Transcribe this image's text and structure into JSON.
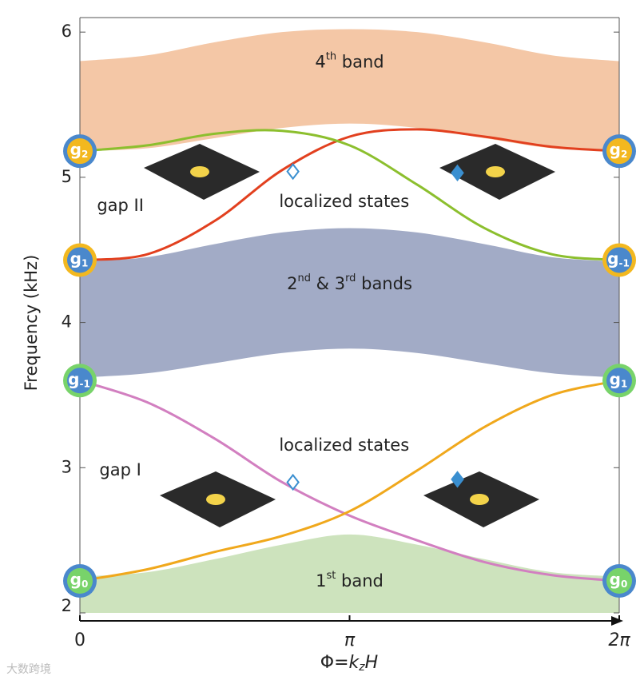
{
  "chart_data": {
    "type": "band",
    "y_label": "Frequency (kHz)",
    "x_label": [
      "Φ=",
      "k",
      "z",
      "H"
    ],
    "xlim": [
      0,
      2
    ],
    "xticks": [
      0,
      {
        "value": 1,
        "label": "π"
      },
      {
        "value": 2,
        "label": "2π"
      }
    ],
    "ylim": [
      2,
      6.1
    ],
    "yticks": [
      2,
      3,
      4,
      5,
      6
    ],
    "x": [
      0,
      0.25,
      0.5,
      0.75,
      1,
      1.25,
      1.5,
      1.75,
      2
    ],
    "bands": [
      {
        "label": [
          "4",
          "th",
          " band"
        ],
        "color": "#f4c7a6",
        "upper": [
          5.8,
          5.84,
          5.93,
          6.0,
          6.02,
          6.0,
          5.93,
          5.84,
          5.8
        ],
        "lower": [
          5.18,
          5.2,
          5.27,
          5.34,
          5.37,
          5.34,
          5.27,
          5.2,
          5.18
        ]
      },
      {
        "label": [
          "2",
          "nd",
          " & 3",
          "rd",
          " bands"
        ],
        "color": "#a2abc6",
        "upper": [
          4.42,
          4.45,
          4.54,
          4.62,
          4.65,
          4.62,
          4.54,
          4.45,
          4.42
        ],
        "lower": [
          3.62,
          3.65,
          3.72,
          3.79,
          3.82,
          3.79,
          3.72,
          3.65,
          3.62
        ]
      },
      {
        "label": [
          "1",
          "st",
          " band"
        ],
        "color": "#cde3bd",
        "upper": [
          2.25,
          2.28,
          2.37,
          2.47,
          2.54,
          2.47,
          2.37,
          2.28,
          2.25
        ],
        "lower": [
          2,
          2,
          2,
          2,
          2,
          2,
          2,
          2,
          2
        ]
      }
    ],
    "series": [
      {
        "color": "#e2401f",
        "values": [
          4.43,
          4.47,
          4.7,
          5.05,
          5.28,
          5.33,
          5.28,
          5.21,
          5.18
        ]
      },
      {
        "color": "#8cbf2e",
        "values": [
          5.18,
          5.22,
          5.3,
          5.32,
          5.22,
          4.95,
          4.65,
          4.47,
          4.43
        ]
      },
      {
        "color": "#d27fc0",
        "values": [
          3.6,
          3.45,
          3.2,
          2.9,
          2.67,
          2.5,
          2.35,
          2.26,
          2.22
        ]
      },
      {
        "color": "#f0a81c",
        "values": [
          2.22,
          2.3,
          2.42,
          2.53,
          2.7,
          2.98,
          3.28,
          3.5,
          3.6
        ]
      }
    ],
    "diamonds": [
      {
        "x": 0.79,
        "y": 5.04,
        "filled": false,
        "color": "#3a8fd0"
      },
      {
        "x": 1.4,
        "y": 5.03,
        "filled": true,
        "color": "#3a8fd0"
      },
      {
        "x": 0.79,
        "y": 2.9,
        "filled": false,
        "color": "#3a8fd0"
      },
      {
        "x": 1.4,
        "y": 2.92,
        "filled": true,
        "color": "#3a8fd0"
      }
    ],
    "nodes": [
      {
        "x": 0,
        "y": 5.18,
        "label": "g",
        "sub": "2",
        "fill": "#f3b81f",
        "ring": "#4a88cc"
      },
      {
        "x": 0,
        "y": 4.43,
        "label": "g",
        "sub": "1",
        "fill": "#4a88cc",
        "ring": "#f3b81f"
      },
      {
        "x": 0,
        "y": 3.6,
        "label": "g",
        "sub": "-1",
        "fill": "#4a88cc",
        "ring": "#78d36a"
      },
      {
        "x": 0,
        "y": 2.22,
        "label": "g",
        "sub": "0",
        "fill": "#78d36a",
        "ring": "#4a88cc"
      },
      {
        "x": 2,
        "y": 5.18,
        "label": "g",
        "sub": "2",
        "fill": "#f3b81f",
        "ring": "#4a88cc"
      },
      {
        "x": 2,
        "y": 4.43,
        "label": "g",
        "sub": "-1",
        "fill": "#4a88cc",
        "ring": "#f3b81f"
      },
      {
        "x": 2,
        "y": 3.6,
        "label": "g",
        "sub": "1",
        "fill": "#4a88cc",
        "ring": "#78d36a"
      },
      {
        "x": 2,
        "y": 2.22,
        "label": "g",
        "sub": "0",
        "fill": "#78d36a",
        "ring": "#4a88cc"
      }
    ],
    "annotations": [
      {
        "text": "gap II",
        "x": 0.15,
        "y": 4.8
      },
      {
        "text": "localized states",
        "x": 0.98,
        "y": 4.83
      },
      {
        "text": "gap I",
        "x": 0.15,
        "y": 2.98
      },
      {
        "text": "localized states",
        "x": 0.98,
        "y": 3.15
      }
    ],
    "watermark": "大数跨境"
  }
}
